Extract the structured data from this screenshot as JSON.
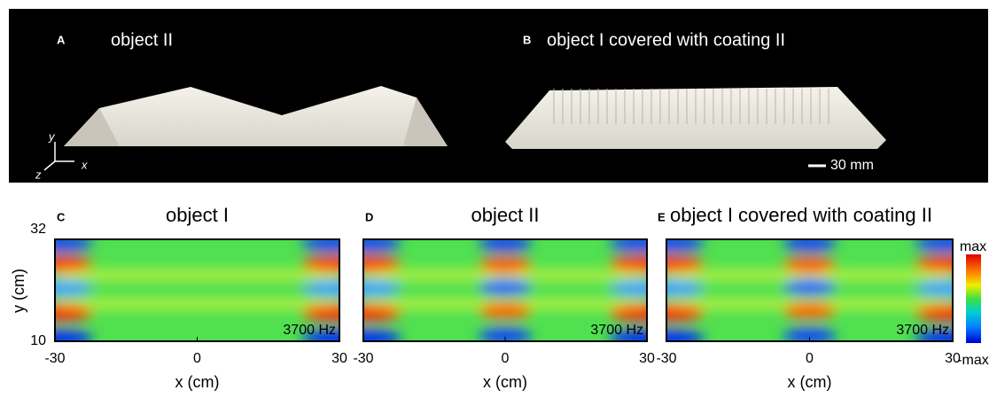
{
  "photos": [
    {
      "label": "A",
      "title": "object II"
    },
    {
      "label": "B",
      "title": "object I covered with coating II",
      "scale_bar": "30 mm"
    }
  ],
  "axes_icon": {
    "y": "y",
    "z": "z",
    "x": "x"
  },
  "maps": [
    {
      "label": "C",
      "title": "object I",
      "note": "3700 Hz",
      "xlabel": "x (cm)",
      "xticks": [
        "-30",
        "0",
        "30"
      ]
    },
    {
      "label": "D",
      "title": "object II",
      "note": "3700 Hz",
      "xlabel": "x (cm)",
      "xticks": [
        "-30",
        "0",
        "30"
      ]
    },
    {
      "label": "E",
      "title": "object I covered with coating II",
      "note": "3700 Hz",
      "xlabel": "x (cm)",
      "xticks": [
        "-30",
        "0",
        "30"
      ]
    }
  ],
  "ylabel": "y (cm)",
  "yticks": [
    "32",
    "10"
  ],
  "colorbar": {
    "max": "max",
    "min": "-max"
  }
}
